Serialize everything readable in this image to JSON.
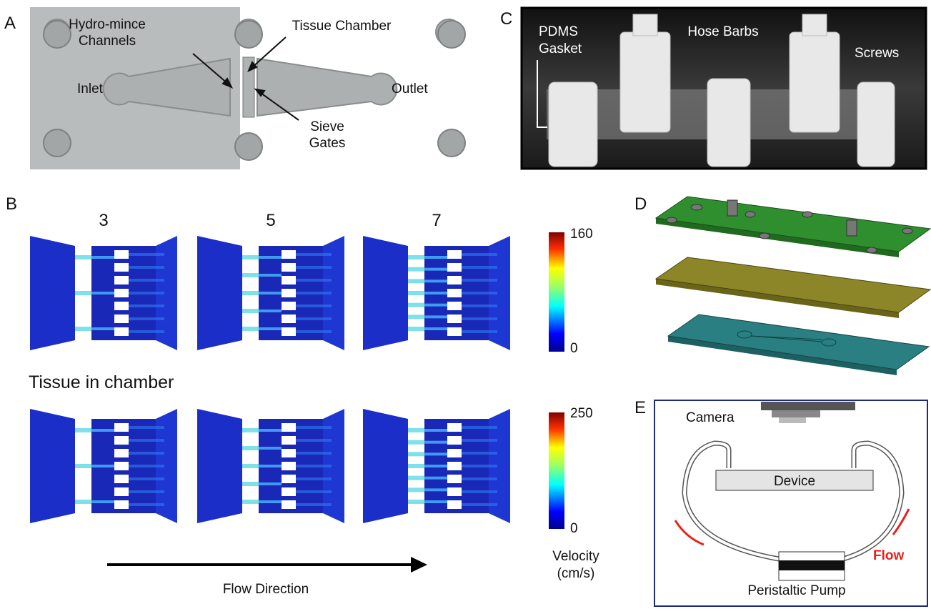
{
  "panels": {
    "A": {
      "label": "A",
      "hydro_mince": [
        "Hydro-mince",
        "Channels"
      ],
      "tissue_chamber": "Tissue Chamber",
      "inlet": "Inlet",
      "outlet": "Outlet",
      "sieve_gates": [
        "Sieve",
        "Gates"
      ]
    },
    "B": {
      "label": "B",
      "columns": [
        3,
        5,
        7
      ],
      "colorbar_top": {
        "max": 160,
        "min": 0
      },
      "subtitle": "Tissue in chamber",
      "colorbar_bottom": {
        "max": 250,
        "min": 0
      },
      "flow_direction": "Flow Direction",
      "velocity": [
        "Velocity",
        "(cm/s)"
      ]
    },
    "C": {
      "label": "C",
      "pdms": [
        "PDMS",
        "Gasket"
      ],
      "hose_barbs": "Hose Barbs",
      "screws": "Screws"
    },
    "D": {
      "label": "D"
    },
    "E": {
      "label": "E",
      "camera": "Camera",
      "device": "Device",
      "pump": "Peristaltic Pump",
      "flow": "Flow"
    }
  }
}
